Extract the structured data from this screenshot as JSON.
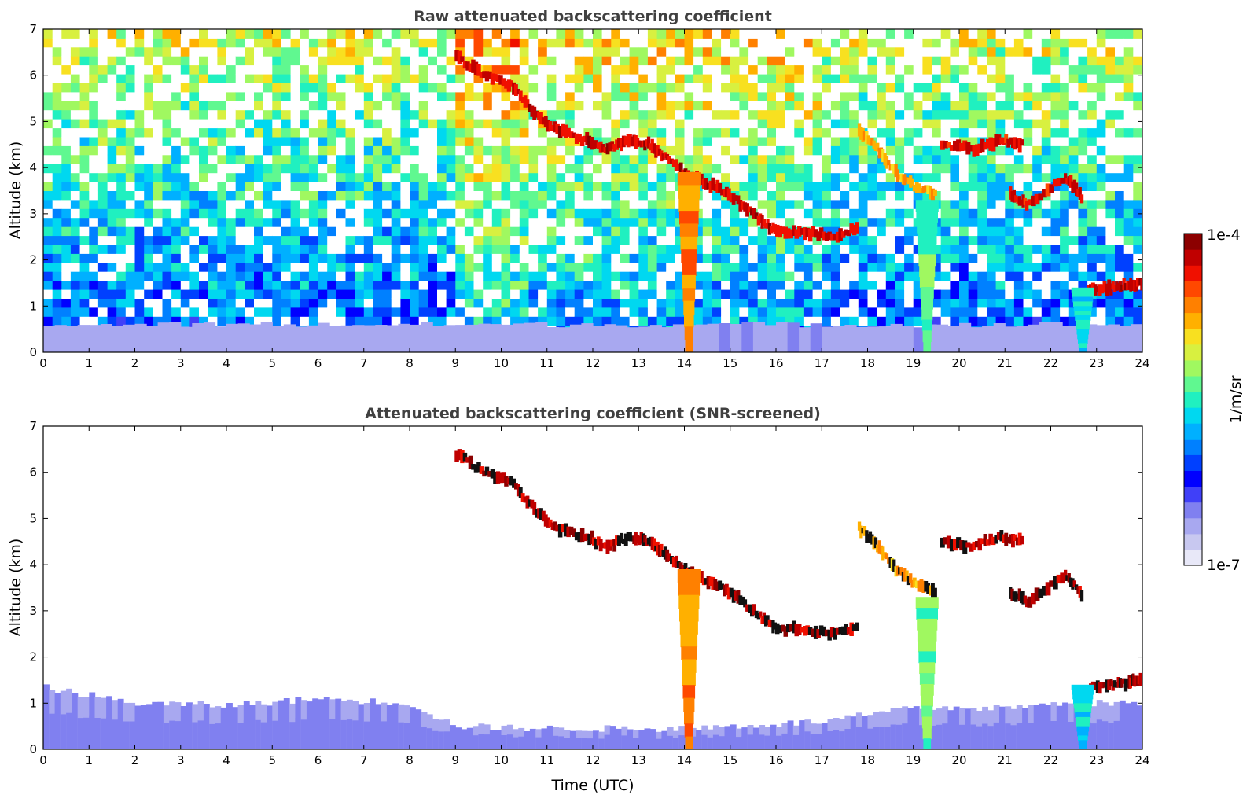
{
  "chart_data": [
    {
      "type": "heatmap",
      "title": "Raw attenuated backscattering coefficient",
      "xlabel": "",
      "ylabel": "Altitude (km)",
      "xlim": [
        0,
        24
      ],
      "ylim": [
        0,
        7
      ],
      "xticks": [
        "0",
        "1",
        "2",
        "3",
        "4",
        "5",
        "6",
        "7",
        "8",
        "9",
        "10",
        "11",
        "12",
        "13",
        "14",
        "15",
        "16",
        "17",
        "18",
        "19",
        "20",
        "21",
        "22",
        "23",
        "24"
      ],
      "yticks": [
        "0",
        "1",
        "2",
        "3",
        "4",
        "5",
        "6",
        "7"
      ],
      "features": [
        {
          "kind": "boundary_layer",
          "t_start": 0,
          "t_end": 24,
          "top_km": 0.6,
          "level": 0.12
        },
        {
          "kind": "noise_background",
          "low_level": 0.3,
          "high_level": 0.65
        },
        {
          "kind": "cloud_layer",
          "points": [
            [
              9.0,
              6.4
            ],
            [
              9.6,
              6.0
            ],
            [
              10.2,
              5.8
            ],
            [
              10.7,
              5.2
            ],
            [
              11.2,
              4.8
            ],
            [
              11.8,
              4.6
            ],
            [
              12.3,
              4.4
            ],
            [
              12.8,
              4.6
            ],
            [
              13.2,
              4.5
            ],
            [
              13.6,
              4.2
            ],
            [
              14.1,
              3.8
            ],
            [
              14.6,
              3.6
            ],
            [
              15.1,
              3.3
            ],
            [
              15.6,
              2.9
            ],
            [
              16.0,
              2.6
            ],
            [
              16.6,
              2.6
            ],
            [
              17.2,
              2.5
            ],
            [
              17.8,
              2.7
            ]
          ],
          "level": 0.96
        },
        {
          "kind": "cloud_layer",
          "points": [
            [
              17.8,
              4.8
            ],
            [
              18.2,
              4.4
            ],
            [
              18.6,
              3.9
            ],
            [
              19.0,
              3.6
            ],
            [
              19.5,
              3.4
            ]
          ],
          "level": 0.8
        },
        {
          "kind": "cloud_layer",
          "points": [
            [
              19.6,
              4.5
            ],
            [
              20.3,
              4.4
            ],
            [
              20.9,
              4.6
            ],
            [
              21.4,
              4.5
            ]
          ],
          "level": 0.95
        },
        {
          "kind": "cloud_layer",
          "points": [
            [
              21.1,
              3.4
            ],
            [
              21.5,
              3.2
            ],
            [
              22.3,
              3.8
            ],
            [
              22.7,
              3.3
            ]
          ],
          "level": 0.95
        },
        {
          "kind": "cloud_layer",
          "points": [
            [
              22.8,
              1.35
            ],
            [
              23.3,
              1.4
            ],
            [
              23.7,
              1.45
            ],
            [
              24.0,
              1.5
            ]
          ],
          "level": 0.97
        },
        {
          "kind": "fallstreak",
          "t": 19.3,
          "top_km": 3.3,
          "level": 0.55
        },
        {
          "kind": "fallstreak",
          "t": 22.7,
          "top_km": 1.4,
          "level": 0.45
        },
        {
          "kind": "fallstreak",
          "t": 14.1,
          "top_km": 3.9,
          "level": 0.78
        }
      ]
    },
    {
      "type": "heatmap",
      "title": "Attenuated backscattering coefficient (SNR-screened)",
      "xlabel": "Time (UTC)",
      "ylabel": "Altitude (km)",
      "xlim": [
        0,
        24
      ],
      "ylim": [
        0,
        7
      ],
      "xticks": [
        "0",
        "1",
        "2",
        "3",
        "4",
        "5",
        "6",
        "7",
        "8",
        "9",
        "10",
        "11",
        "12",
        "13",
        "14",
        "15",
        "16",
        "17",
        "18",
        "19",
        "20",
        "21",
        "22",
        "23",
        "24"
      ],
      "yticks": [
        "0",
        "1",
        "2",
        "3",
        "4",
        "5",
        "6",
        "7"
      ],
      "features": [
        {
          "kind": "boundary_layer_profile",
          "points": [
            [
              0,
              1.35
            ],
            [
              2,
              1.0
            ],
            [
              4,
              0.95
            ],
            [
              6,
              1.1
            ],
            [
              8,
              1.0
            ],
            [
              9,
              0.5
            ],
            [
              11,
              0.45
            ],
            [
              14,
              0.45
            ],
            [
              17,
              0.6
            ],
            [
              19,
              0.9
            ],
            [
              21,
              0.9
            ],
            [
              22.5,
              1.0
            ],
            [
              24,
              1.0
            ]
          ],
          "level": 0.14
        },
        {
          "kind": "cloud_layer",
          "points": [
            [
              9.0,
              6.4
            ],
            [
              9.6,
              6.0
            ],
            [
              10.2,
              5.8
            ],
            [
              10.7,
              5.2
            ],
            [
              11.2,
              4.8
            ],
            [
              11.8,
              4.6
            ],
            [
              12.3,
              4.4
            ],
            [
              12.8,
              4.6
            ],
            [
              13.2,
              4.5
            ],
            [
              13.6,
              4.2
            ],
            [
              14.1,
              3.8
            ],
            [
              14.6,
              3.6
            ],
            [
              15.1,
              3.3
            ],
            [
              15.6,
              2.9
            ],
            [
              16.0,
              2.6
            ],
            [
              16.6,
              2.6
            ],
            [
              17.2,
              2.5
            ],
            [
              17.8,
              2.7
            ]
          ],
          "level": 0.98
        },
        {
          "kind": "cloud_layer",
          "points": [
            [
              17.8,
              4.8
            ],
            [
              18.2,
              4.4
            ],
            [
              18.6,
              3.9
            ],
            [
              19.0,
              3.6
            ],
            [
              19.5,
              3.4
            ]
          ],
          "level": 0.8
        },
        {
          "kind": "cloud_layer",
          "points": [
            [
              19.6,
              4.5
            ],
            [
              20.3,
              4.4
            ],
            [
              20.9,
              4.6
            ],
            [
              21.4,
              4.5
            ]
          ],
          "level": 0.98
        },
        {
          "kind": "cloud_layer",
          "points": [
            [
              21.1,
              3.4
            ],
            [
              21.5,
              3.2
            ],
            [
              22.3,
              3.8
            ],
            [
              22.7,
              3.3
            ]
          ],
          "level": 0.98
        },
        {
          "kind": "cloud_layer",
          "points": [
            [
              22.8,
              1.35
            ],
            [
              23.3,
              1.4
            ],
            [
              23.7,
              1.45
            ],
            [
              24.0,
              1.5
            ]
          ],
          "level": 0.98
        },
        {
          "kind": "fallstreak",
          "t": 19.3,
          "top_km": 3.3,
          "level": 0.55
        },
        {
          "kind": "fallstreak",
          "t": 22.7,
          "top_km": 1.4,
          "level": 0.45
        },
        {
          "kind": "fallstreak",
          "t": 14.1,
          "top_km": 3.9,
          "level": 0.78
        }
      ]
    }
  ],
  "colorbar": {
    "label": "1/m/sr",
    "max_label": "1e-4",
    "min_label": "1e-7",
    "colors": [
      "#e8e8f8",
      "#c8c8f0",
      "#a8a8f0",
      "#8080f0",
      "#4040f8",
      "#0000ff",
      "#0040ff",
      "#0080ff",
      "#00b0ff",
      "#00d8f0",
      "#20f0c0",
      "#60f890",
      "#a0f860",
      "#d8f040",
      "#f8e020",
      "#ffb000",
      "#ff8000",
      "#ff4800",
      "#f01000",
      "#c00000",
      "#8c0000"
    ]
  }
}
